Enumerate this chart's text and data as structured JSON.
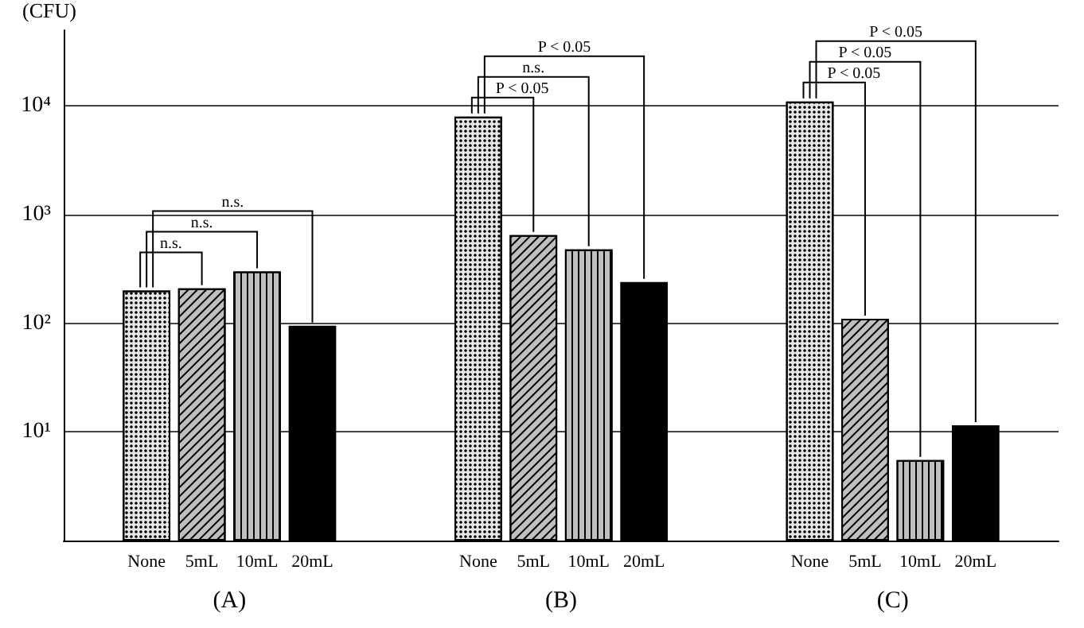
{
  "chart_data": {
    "type": "bar",
    "ylabel": "(CFU)",
    "categories": [
      null,
      "None",
      "5mL",
      "10mL",
      "20mL",
      null,
      null,
      "None",
      "5mL",
      "10mL",
      "20mL",
      null,
      null,
      "None",
      "5mL",
      "10mL",
      "20mL",
      null
    ],
    "values": [
      null,
      200,
      210,
      300,
      95,
      null,
      null,
      8000,
      650,
      480,
      240,
      null,
      null,
      11000,
      110,
      5.5,
      11.5,
      null
    ],
    "colors": [
      null,
      "#e6e6e6",
      "#bfbfbf",
      "#bfbfbf",
      "#000000",
      null,
      null,
      "#e6e6e6",
      "#bfbfbf",
      "#bfbfbf",
      "#000000",
      null,
      null,
      "#e6e6e6",
      "#bfbfbf",
      "#bfbfbf",
      "#000000",
      null
    ],
    "log": true,
    "ylim": [
      1,
      50000
    ],
    "yticks": [
      {
        "value": 10,
        "label": "10¹"
      },
      {
        "value": 100,
        "label": "10²"
      },
      {
        "value": 1000,
        "label": "10³"
      },
      {
        "value": 10000,
        "label": "10⁴"
      }
    ],
    "grid": "y",
    "annotations": [
      "(A)",
      "(B)",
      "(C)",
      "n.s.",
      "n.s.",
      "n.s.",
      "P < 0.05",
      "n.s.",
      "P < 0.05",
      "P < 0.05",
      "P < 0.05",
      "P < 0.05"
    ]
  }
}
